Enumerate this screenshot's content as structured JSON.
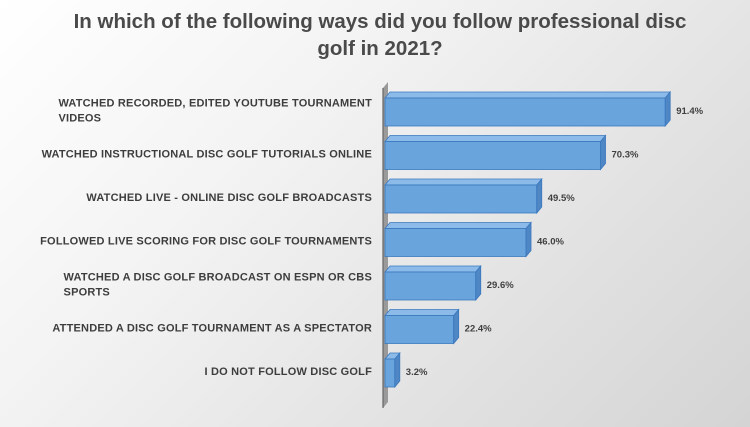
{
  "chart_data": {
    "type": "bar",
    "orientation": "horizontal",
    "title_lines": [
      "In which of the following ways did you follow professional disc",
      "golf in 2021?"
    ],
    "categories": [
      [
        "WATCHED RECORDED, EDITED YOUTUBE TOURNAMENT",
        "VIDEOS"
      ],
      [
        "WATCHED INSTRUCTIONAL DISC GOLF TUTORIALS ONLINE"
      ],
      [
        "WATCHED LIVE - ONLINE DISC GOLF BROADCASTS"
      ],
      [
        "FOLLOWED LIVE SCORING FOR DISC GOLF TOURNAMENTS"
      ],
      [
        "WATCHED A DISC GOLF BROADCAST ON ESPN OR CBS",
        "SPORTS"
      ],
      [
        "ATTENDED A DISC GOLF TOURNAMENT AS A SPECTATOR"
      ],
      [
        "I DO NOT FOLLOW DISC GOLF"
      ]
    ],
    "values": [
      91.4,
      70.3,
      49.5,
      46.0,
      29.6,
      22.4,
      3.2
    ],
    "value_labels": [
      "91.4%",
      "70.3%",
      "49.5%",
      "46.0%",
      "29.6%",
      "22.4%",
      "3.2%"
    ],
    "xlim": [
      0,
      100
    ],
    "grid": false,
    "legend": "none",
    "bar_color": "#6aa4dd",
    "bar_edge_color": "#3a78bf",
    "bar_depth_color": "#4f86c4"
  }
}
